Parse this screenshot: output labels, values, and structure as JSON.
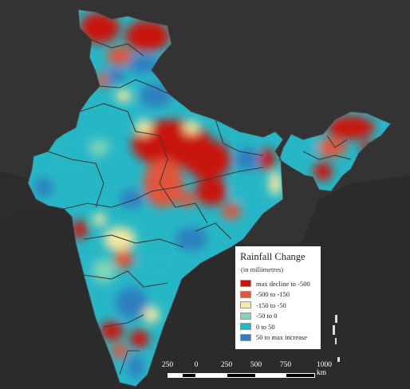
{
  "legend": {
    "title": "Rainfall Change",
    "unit": "(in millimetres)",
    "items": [
      {
        "label": "max decline to -500",
        "color": "#c8120a"
      },
      {
        "label": "-500 to -150",
        "color": "#e2553b"
      },
      {
        "label": "-150 to -50",
        "color": "#f6e7a2"
      },
      {
        "label": "-50 to 0",
        "color": "#7fd6b5"
      },
      {
        "label": "0 to 50",
        "color": "#26b7c6"
      },
      {
        "label": "50 to max increase",
        "color": "#2f7fc0"
      }
    ]
  },
  "scale": {
    "labels": [
      "250",
      "0",
      "250",
      "500",
      "750",
      "1000 km"
    ]
  },
  "colors": {
    "background": "#2b2b2b",
    "land_outside": "#3a3a3a",
    "boundary": "#3a3a3a"
  }
}
